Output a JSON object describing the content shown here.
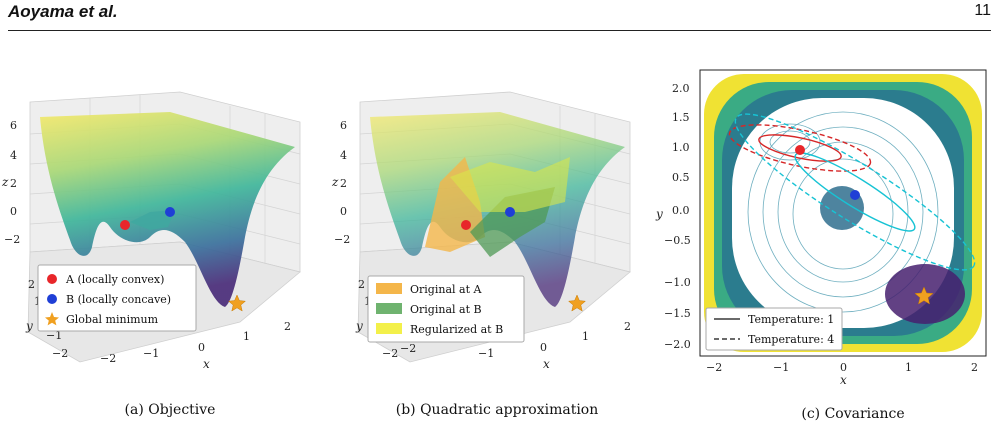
{
  "header": {
    "author": "Aoyama et al.",
    "page_number": "11"
  },
  "panels": [
    {
      "caption": "(a) Objective",
      "z_ticks": [
        "6",
        "4",
        "2",
        "0",
        "−2"
      ],
      "y_ticks": [
        "2",
        "1",
        "0",
        "−1",
        "−2"
      ],
      "x_ticks": [
        "−2",
        "−1",
        "0",
        "1",
        "2"
      ],
      "labels": {
        "x": "x",
        "y": "y",
        "z": "z"
      },
      "legend": [
        {
          "label": "A (locally convex)",
          "color": "#e8262a",
          "marker": "circle"
        },
        {
          "label": "B (locally concave)",
          "color": "#1f3fd6",
          "marker": "circle"
        },
        {
          "label": "Global minimum",
          "color": "#f0a020",
          "marker": "star"
        }
      ]
    },
    {
      "caption": "(b) Quadratic approximation",
      "z_ticks": [
        "6",
        "4",
        "2",
        "0",
        "−2"
      ],
      "y_ticks": [
        "2",
        "1",
        "0",
        "−1",
        "−2"
      ],
      "x_ticks": [
        "−2",
        "−1",
        "0",
        "1",
        "2"
      ],
      "labels": {
        "x": "x",
        "y": "y",
        "z": "z"
      },
      "legend": [
        {
          "label": "Original at A",
          "color": "#f4b64a"
        },
        {
          "label": "Original at B",
          "color": "#6fb36f"
        },
        {
          "label": "Regularized at B",
          "color": "#f3f04a"
        }
      ]
    },
    {
      "caption": "(c) Covariance",
      "x_ticks": [
        "−2",
        "−1",
        "0",
        "1",
        "2"
      ],
      "y_ticks": [
        "2.0",
        "1.5",
        "1.0",
        "0.5",
        "0.0",
        "−0.5",
        "−1.0",
        "−1.5",
        "−2.0"
      ],
      "labels": {
        "x": "x",
        "y": "y"
      },
      "legend": [
        {
          "label": "Temperature: 1",
          "style": "solid"
        },
        {
          "label": "Temperature: 4",
          "style": "dashed"
        }
      ]
    }
  ],
  "colors": {
    "point_a": "#e8262a",
    "point_b": "#1f3fd6",
    "global_min": "#f0a020",
    "cov_red": "#d62728",
    "cov_cyan": "#17c3d4"
  }
}
